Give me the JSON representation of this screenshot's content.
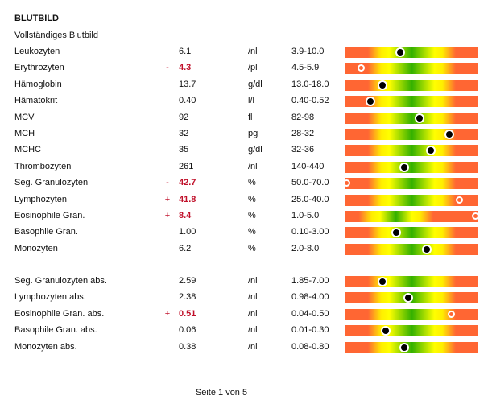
{
  "title": "BLUTBILD",
  "subtitle": "Vollständiges Blutbild",
  "groups": [
    [
      {
        "name": "Leukozyten",
        "flag": "",
        "value": "6.1",
        "unit": "/nl",
        "range": "3.9-10.0",
        "position": 0.41
      },
      {
        "name": "Erythrozyten",
        "flag": "-",
        "value": "4.3",
        "unit": "/pl",
        "range": "4.5-5.9",
        "position": 0.12
      },
      {
        "name": "Hämoglobin",
        "flag": "",
        "value": "13.7",
        "unit": "g/dl",
        "range": "13.0-18.0",
        "position": 0.28
      },
      {
        "name": "Hämatokrit",
        "flag": "",
        "value": "0.40",
        "unit": "l/l",
        "range": "0.40-0.52",
        "position": 0.19
      },
      {
        "name": "MCV",
        "flag": "",
        "value": "92",
        "unit": "fl",
        "range": "82-98",
        "position": 0.56
      },
      {
        "name": "MCH",
        "flag": "",
        "value": "32",
        "unit": "pg",
        "range": "28-32",
        "position": 0.78
      },
      {
        "name": "MCHC",
        "flag": "",
        "value": "35",
        "unit": "g/dl",
        "range": "32-36",
        "position": 0.64
      },
      {
        "name": "Thrombozyten",
        "flag": "",
        "value": "261",
        "unit": "/nl",
        "range": "140-440",
        "position": 0.44
      },
      {
        "name": "Seg. Granulozyten",
        "flag": "-",
        "value": "42.7",
        "unit": "%",
        "range": "50.0-70.0",
        "position": 0.01
      },
      {
        "name": "Lymphozyten",
        "flag": "+",
        "value": "41.8",
        "unit": "%",
        "range": "25.0-40.0",
        "position": 0.86
      },
      {
        "name": "Eosinophile Gran.",
        "flag": "+",
        "value": "8.4",
        "unit": "%",
        "range": "1.0-5.0",
        "position": 0.98,
        "shift": true
      },
      {
        "name": "Basophile Gran.",
        "flag": "",
        "value": "1.00",
        "unit": "%",
        "range": "0.10-3.00",
        "position": 0.38
      },
      {
        "name": "Monozyten",
        "flag": "",
        "value": "6.2",
        "unit": "%",
        "range": "2.0-8.0",
        "position": 0.61
      }
    ],
    [
      {
        "name": "Seg. Granulozyten abs.",
        "flag": "",
        "value": "2.59",
        "unit": "/nl",
        "range": "1.85-7.00",
        "position": 0.28
      },
      {
        "name": "Lymphozyten abs.",
        "flag": "",
        "value": "2.38",
        "unit": "/nl",
        "range": "0.98-4.00",
        "position": 0.47
      },
      {
        "name": "Eosinophile Gran. abs.",
        "flag": "+",
        "value": "0.51",
        "unit": "/nl",
        "range": "0.04-0.50",
        "position": 0.8
      },
      {
        "name": "Basophile Gran. abs.",
        "flag": "",
        "value": "0.06",
        "unit": "/nl",
        "range": "0.01-0.30",
        "position": 0.3
      },
      {
        "name": "Monozyten abs.",
        "flag": "",
        "value": "0.38",
        "unit": "/nl",
        "range": "0.08-0.80",
        "position": 0.44
      }
    ]
  ],
  "footer": "Seite 1 von 5"
}
